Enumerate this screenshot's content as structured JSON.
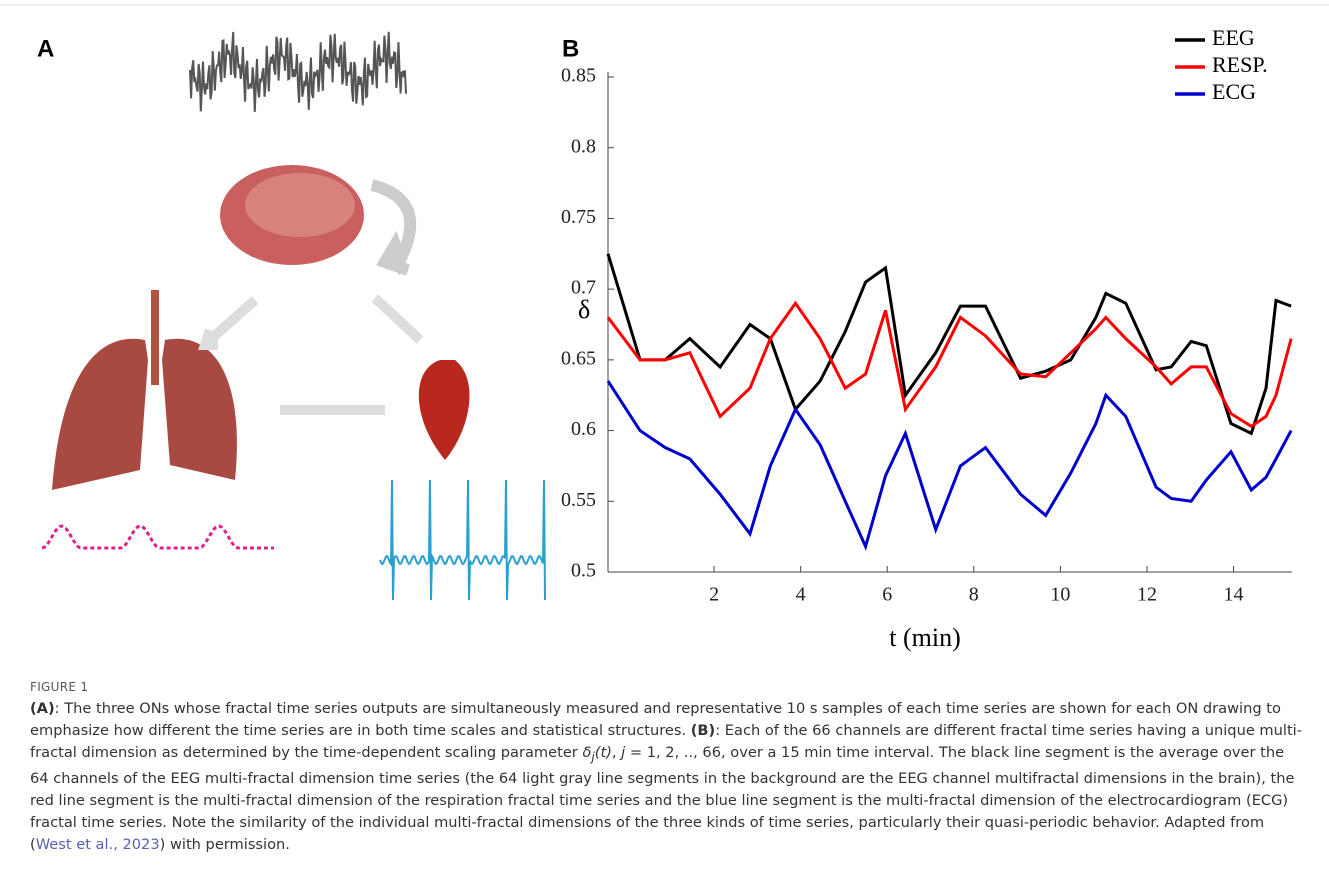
{
  "figure": {
    "panel_labels": [
      "A",
      "B"
    ]
  },
  "chart_data": {
    "type": "line",
    "ylabel": "δ",
    "xlabel": "t (min)",
    "x": [
      -0.45,
      0.29,
      0.87,
      1.44,
      2.14,
      2.83,
      3.3,
      3.88,
      4.45,
      5.03,
      5.5,
      5.96,
      6.42,
      7.12,
      7.69,
      8.27,
      9.08,
      9.66,
      10.24,
      10.82,
      11.05,
      11.51,
      12.21,
      12.56,
      13.02,
      13.37,
      13.94,
      14.41,
      14.75,
      14.98,
      15.33
    ],
    "series": [
      {
        "name": "EEG",
        "color": "#000000",
        "values": [
          0.725,
          0.65,
          0.65,
          0.665,
          0.645,
          0.675,
          0.665,
          0.615,
          0.635,
          0.67,
          0.705,
          0.715,
          0.625,
          0.655,
          0.688,
          0.688,
          0.637,
          0.642,
          0.65,
          0.68,
          0.697,
          0.69,
          0.643,
          0.645,
          0.663,
          0.66,
          0.605,
          0.598,
          0.63,
          0.692,
          0.688
        ]
      },
      {
        "name": "RESP.",
        "color": "#ff0000",
        "values": [
          0.68,
          0.65,
          0.65,
          0.655,
          0.61,
          0.63,
          0.665,
          0.69,
          0.665,
          0.63,
          0.64,
          0.685,
          0.615,
          0.645,
          0.68,
          0.667,
          0.64,
          0.638,
          0.655,
          0.672,
          0.68,
          0.665,
          0.645,
          0.633,
          0.645,
          0.645,
          0.612,
          0.603,
          0.61,
          0.625,
          0.665
        ]
      },
      {
        "name": "ECG",
        "color": "#0000cc",
        "values": [
          0.635,
          0.6,
          0.588,
          0.58,
          0.555,
          0.527,
          0.575,
          0.615,
          0.59,
          0.55,
          0.518,
          0.568,
          0.598,
          0.53,
          0.575,
          0.588,
          0.555,
          0.54,
          0.57,
          0.605,
          0.625,
          0.61,
          0.56,
          0.552,
          0.55,
          0.565,
          0.585,
          0.558,
          0.567,
          0.58,
          0.6
        ]
      }
    ],
    "xlim": [
      -0.45,
      15.35
    ],
    "ylim": [
      0.5,
      0.85
    ],
    "xticks": [
      2,
      4,
      6,
      8,
      10,
      12,
      14
    ],
    "yticks": [
      0.5,
      0.55,
      0.6,
      0.65,
      0.7,
      0.75,
      0.8,
      0.85
    ],
    "legend": "upper right"
  },
  "caption": {
    "label": "FIGURE 1",
    "a_label": "(A)",
    "a_text": ": The three ONs whose fractal time series outputs are simultaneously measured and representative 10 s samples of each time series are shown for each ON drawing to emphasize how different the time series are in both time scales and statistical structures. ",
    "b_label": "(B)",
    "b_text1": ": Each of the 66 channels are different fractal time series having a unique multi-fractal dimension as determined by the time-dependent scaling parameter ",
    "b_delta": "δ",
    "b_sub": "j",
    "b_t": "(t)",
    "b_j": "j",
    "b_text2": " = 1, 2, .., 66, over a 15 min time interval. The black line segment is the average over the 64 channels of the EEG multi-fractal dimension time series (the 64 light gray line segments in the background are the EEG channel multifractal dimensions in the brain), the red line segment is the multi-fractal dimension of the respiration fractal time series and the blue line segment is the multi-fractal dimension of the electrocardiogram (ECG) fractal time series. Note the similarity of the individual multi-fractal dimensions of the three kinds of time series, particularly their quasi-periodic behavior. Adapted from (",
    "link": "West et al., 2023",
    "b_text3": ") with permission."
  }
}
